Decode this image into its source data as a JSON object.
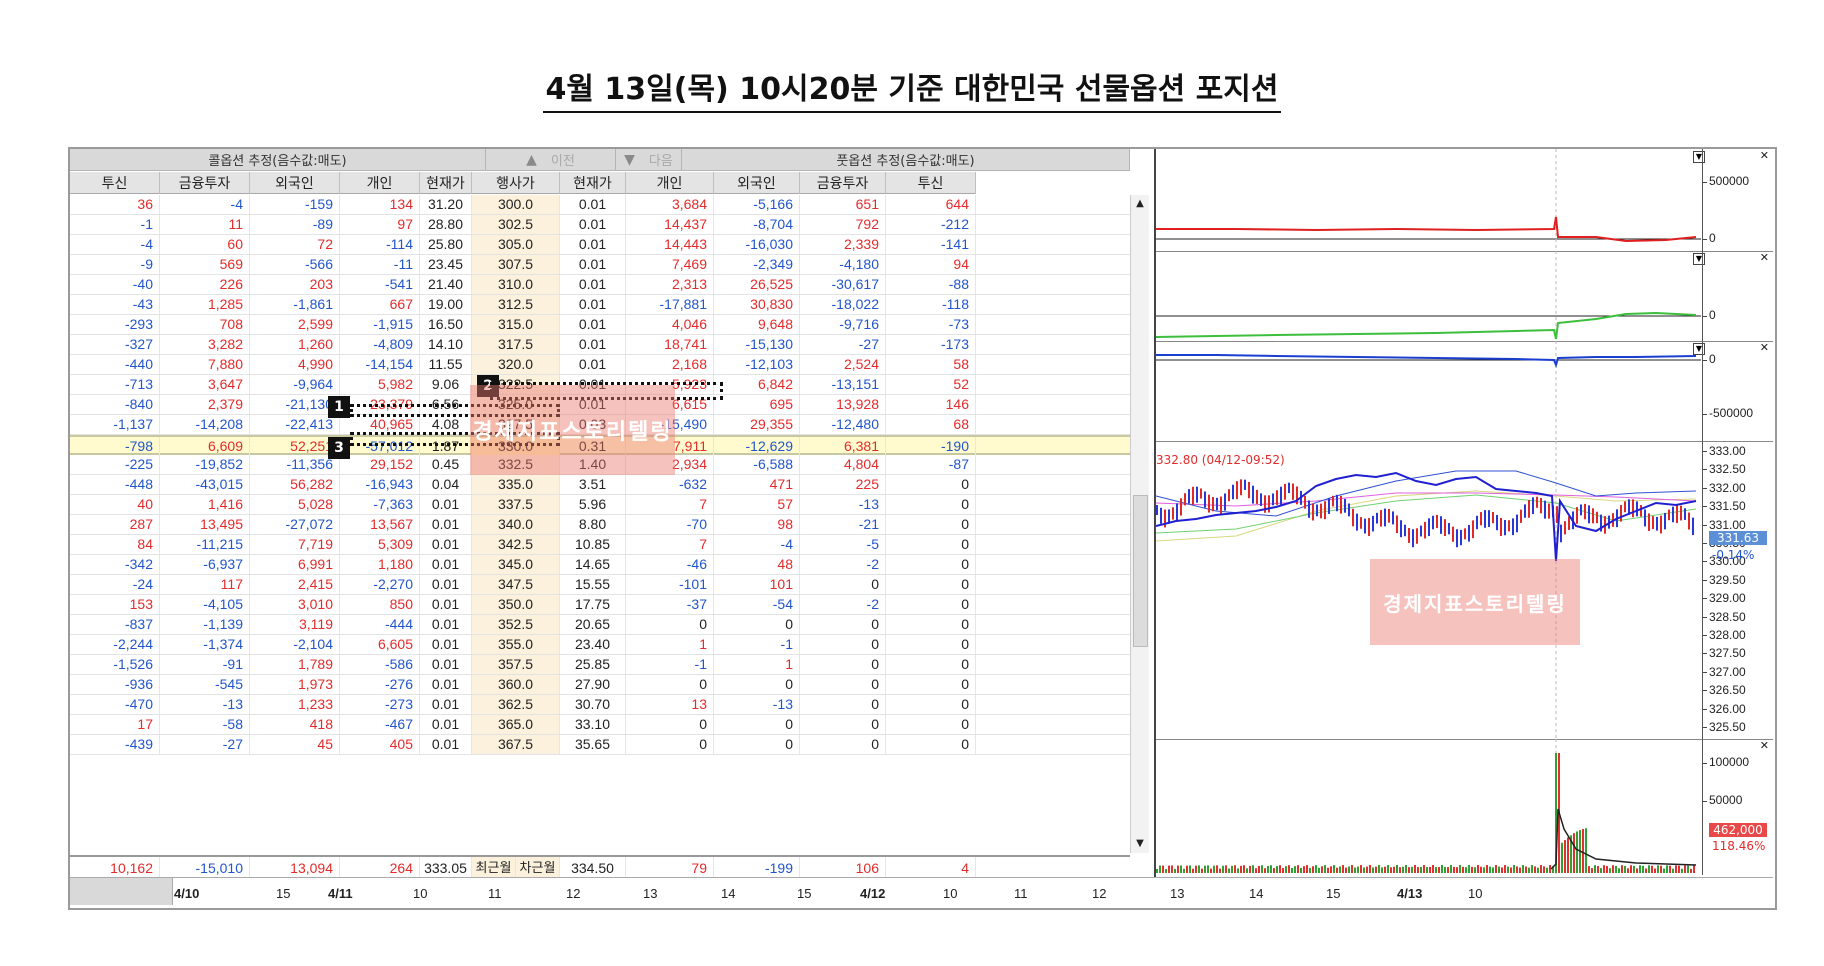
{
  "title": "4월 13일(목) 10시20분 기준 대한민국 선물옵션 포지션",
  "header": {
    "call_group": "콜옵션 추정(음수값:매도)",
    "put_group": "풋옵션 추정(음수값:매도)",
    "prev_label": "이전",
    "next_label": "다음",
    "columns": [
      "투신",
      "금융투자",
      "외국인",
      "개인",
      "현재가",
      "행사가",
      "현재가",
      "개인",
      "외국인",
      "금융투자",
      "투신"
    ]
  },
  "rows": [
    [
      "36",
      "-4",
      "-159",
      "134",
      "31.20",
      "300.0",
      "0.01",
      "3,684",
      "-5,166",
      "651",
      "644"
    ],
    [
      "-1",
      "11",
      "-89",
      "97",
      "28.80",
      "302.5",
      "0.01",
      "14,437",
      "-8,704",
      "792",
      "-212"
    ],
    [
      "-4",
      "60",
      "72",
      "-114",
      "25.80",
      "305.0",
      "0.01",
      "14,443",
      "-16,030",
      "2,339",
      "-141"
    ],
    [
      "-9",
      "569",
      "-566",
      "-11",
      "23.45",
      "307.5",
      "0.01",
      "7,469",
      "-2,349",
      "-4,180",
      "94"
    ],
    [
      "-40",
      "226",
      "203",
      "-541",
      "21.40",
      "310.0",
      "0.01",
      "2,313",
      "26,525",
      "-30,617",
      "-88"
    ],
    [
      "-43",
      "1,285",
      "-1,861",
      "667",
      "19.00",
      "312.5",
      "0.01",
      "-17,881",
      "30,830",
      "-18,022",
      "-118"
    ],
    [
      "-293",
      "708",
      "2,599",
      "-1,915",
      "16.50",
      "315.0",
      "0.01",
      "4,046",
      "9,648",
      "-9,716",
      "-73"
    ],
    [
      "-327",
      "3,282",
      "1,260",
      "-4,809",
      "14.10",
      "317.5",
      "0.01",
      "18,741",
      "-15,130",
      "-27",
      "-173"
    ],
    [
      "-440",
      "7,880",
      "4,990",
      "-14,154",
      "11.55",
      "320.0",
      "0.01",
      "2,168",
      "-12,103",
      "2,524",
      "58"
    ],
    [
      "-713",
      "3,647",
      "-9,964",
      "5,982",
      "9.06",
      "322.5",
      "0.01",
      "5,923",
      "6,842",
      "-13,151",
      "52"
    ],
    [
      "-840",
      "2,379",
      "-21,130",
      "23,379",
      "6.56",
      "325.0",
      "0.01",
      "6,615",
      "695",
      "13,928",
      "146"
    ],
    [
      "-1,137",
      "-14,208",
      "-22,413",
      "40,965",
      "4.08",
      "327.5",
      "0.03",
      "-15,490",
      "29,355",
      "-12,480",
      "68"
    ],
    [
      "-798",
      "6,609",
      "52,251",
      "-57,012",
      "1.87",
      "330.0",
      "0.31",
      "7,911",
      "-12,629",
      "6,381",
      "-190"
    ],
    [
      "-225",
      "-19,852",
      "-11,356",
      "29,152",
      "0.45",
      "332.5",
      "1.40",
      "2,934",
      "-6,588",
      "4,804",
      "-87"
    ],
    [
      "-448",
      "-43,015",
      "56,282",
      "-16,943",
      "0.04",
      "335.0",
      "3.51",
      "-632",
      "471",
      "225",
      "0"
    ],
    [
      "40",
      "1,416",
      "5,028",
      "-7,363",
      "0.01",
      "337.5",
      "5.96",
      "7",
      "57",
      "-13",
      "0"
    ],
    [
      "287",
      "13,495",
      "-27,072",
      "13,567",
      "0.01",
      "340.0",
      "8.80",
      "-70",
      "98",
      "-21",
      "0"
    ],
    [
      "84",
      "-11,215",
      "7,719",
      "5,309",
      "0.01",
      "342.5",
      "10.85",
      "7",
      "-4",
      "-5",
      "0"
    ],
    [
      "-342",
      "-6,937",
      "6,991",
      "1,180",
      "0.01",
      "345.0",
      "14.65",
      "-46",
      "48",
      "-2",
      "0"
    ],
    [
      "-24",
      "117",
      "2,415",
      "-2,270",
      "0.01",
      "347.5",
      "15.55",
      "-101",
      "101",
      "0",
      "0"
    ],
    [
      "153",
      "-4,105",
      "3,010",
      "850",
      "0.01",
      "350.0",
      "17.75",
      "-37",
      "-54",
      "-2",
      "0"
    ],
    [
      "-837",
      "-1,139",
      "3,119",
      "-444",
      "0.01",
      "352.5",
      "20.65",
      "0",
      "0",
      "0",
      "0"
    ],
    [
      "-2,244",
      "-1,374",
      "-2,104",
      "6,605",
      "0.01",
      "355.0",
      "23.40",
      "1",
      "-1",
      "0",
      "0"
    ],
    [
      "-1,526",
      "-91",
      "1,789",
      "-586",
      "0.01",
      "357.5",
      "25.85",
      "-1",
      "1",
      "0",
      "0"
    ],
    [
      "-936",
      "-545",
      "1,973",
      "-276",
      "0.01",
      "360.0",
      "27.90",
      "0",
      "0",
      "0",
      "0"
    ],
    [
      "-470",
      "-13",
      "1,233",
      "-273",
      "0.01",
      "362.5",
      "30.70",
      "13",
      "-13",
      "0",
      "0"
    ],
    [
      "17",
      "-58",
      "418",
      "-467",
      "0.01",
      "365.0",
      "33.10",
      "0",
      "0",
      "0",
      "0"
    ],
    [
      "-439",
      "-27",
      "45",
      "405",
      "0.01",
      "367.5",
      "35.65",
      "0",
      "0",
      "0",
      "0"
    ]
  ],
  "highlight_row": 12,
  "totals": [
    "10,162",
    "-15,010",
    "13,094",
    "264",
    "333.05",
    "최근월",
    "차근월",
    "334.50",
    "79",
    "-199",
    "106",
    "4"
  ],
  "markers": [
    "1",
    "2",
    "3"
  ],
  "watermark": "경제지표스토리텔링",
  "chart": {
    "scale1": [
      "500000",
      "0"
    ],
    "scale2": [
      "0"
    ],
    "scale3": [
      "0",
      "-500000"
    ],
    "price_scale": [
      "333.00",
      "332.50",
      "332.00",
      "331.50",
      "331.00",
      "330.50",
      "330.00",
      "329.50",
      "329.00",
      "328.50",
      "328.00",
      "327.50",
      "327.00",
      "326.50",
      "326.00",
      "325.50"
    ],
    "price_note": "332.80 (04/12-09:52)",
    "current_price": "331.63",
    "change": "-0.14%",
    "vol_scale": [
      "100000",
      "50000"
    ],
    "volume": "462,000",
    "volume_pct": "118.46%"
  },
  "xaxis": [
    {
      "label": "4/10",
      "bold": true
    },
    {
      "label": "15",
      "bold": false
    },
    {
      "label": "4/11",
      "bold": true
    },
    {
      "label": "10",
      "bold": false
    },
    {
      "label": "11",
      "bold": false
    },
    {
      "label": "12",
      "bold": false
    },
    {
      "label": "13",
      "bold": false
    },
    {
      "label": "14",
      "bold": false
    },
    {
      "label": "15",
      "bold": false
    },
    {
      "label": "4/12",
      "bold": true
    },
    {
      "label": "10",
      "bold": false
    },
    {
      "label": "11",
      "bold": false
    },
    {
      "label": "12",
      "bold": false
    },
    {
      "label": "13",
      "bold": false
    },
    {
      "label": "14",
      "bold": false
    },
    {
      "label": "15",
      "bold": false
    },
    {
      "label": "4/13",
      "bold": true
    },
    {
      "label": "10",
      "bold": false
    }
  ],
  "colors": {
    "positive": "#e32b2b",
    "negative": "#2255cc",
    "highlight": "#fffbcf",
    "strike_bg": "#fbf1dc"
  }
}
